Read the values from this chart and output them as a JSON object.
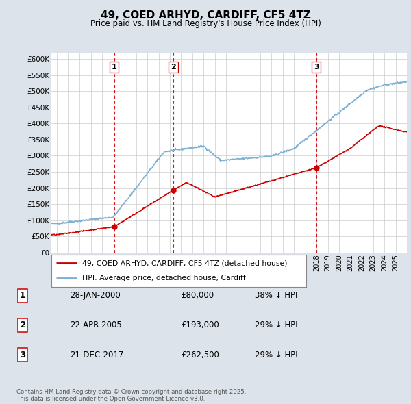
{
  "title": "49, COED ARHYD, CARDIFF, CF5 4TZ",
  "subtitle": "Price paid vs. HM Land Registry's House Price Index (HPI)",
  "legend_property": "49, COED ARHYD, CARDIFF, CF5 4TZ (detached house)",
  "legend_hpi": "HPI: Average price, detached house, Cardiff",
  "property_color": "#cc0000",
  "hpi_color": "#7ab0d4",
  "background_color": "#dde3ea",
  "plot_bg_color": "#ffffff",
  "grid_color": "#cccccc",
  "ylim": [
    0,
    620000
  ],
  "yticks": [
    0,
    50000,
    100000,
    150000,
    200000,
    250000,
    300000,
    350000,
    400000,
    450000,
    500000,
    550000,
    600000
  ],
  "ytick_labels": [
    "£0",
    "£50K",
    "£100K",
    "£150K",
    "£200K",
    "£250K",
    "£300K",
    "£350K",
    "£400K",
    "£450K",
    "£500K",
    "£550K",
    "£600K"
  ],
  "sales": [
    {
      "num": 1,
      "date": "28-JAN-2000",
      "price": 80000,
      "year": 2000.07,
      "pct": "38%",
      "direction": "↓"
    },
    {
      "num": 2,
      "date": "22-APR-2005",
      "price": 193000,
      "year": 2005.3,
      "pct": "29%",
      "direction": "↓"
    },
    {
      "num": 3,
      "date": "21-DEC-2017",
      "price": 262500,
      "year": 2017.97,
      "pct": "29%",
      "direction": "↓"
    }
  ],
  "footnote": "Contains HM Land Registry data © Crown copyright and database right 2025.\nThis data is licensed under the Open Government Licence v3.0.",
  "vline_color": "#cc0000",
  "marker_color": "#cc0000",
  "xlim_left": 1994.5,
  "xlim_right": 2026.0
}
